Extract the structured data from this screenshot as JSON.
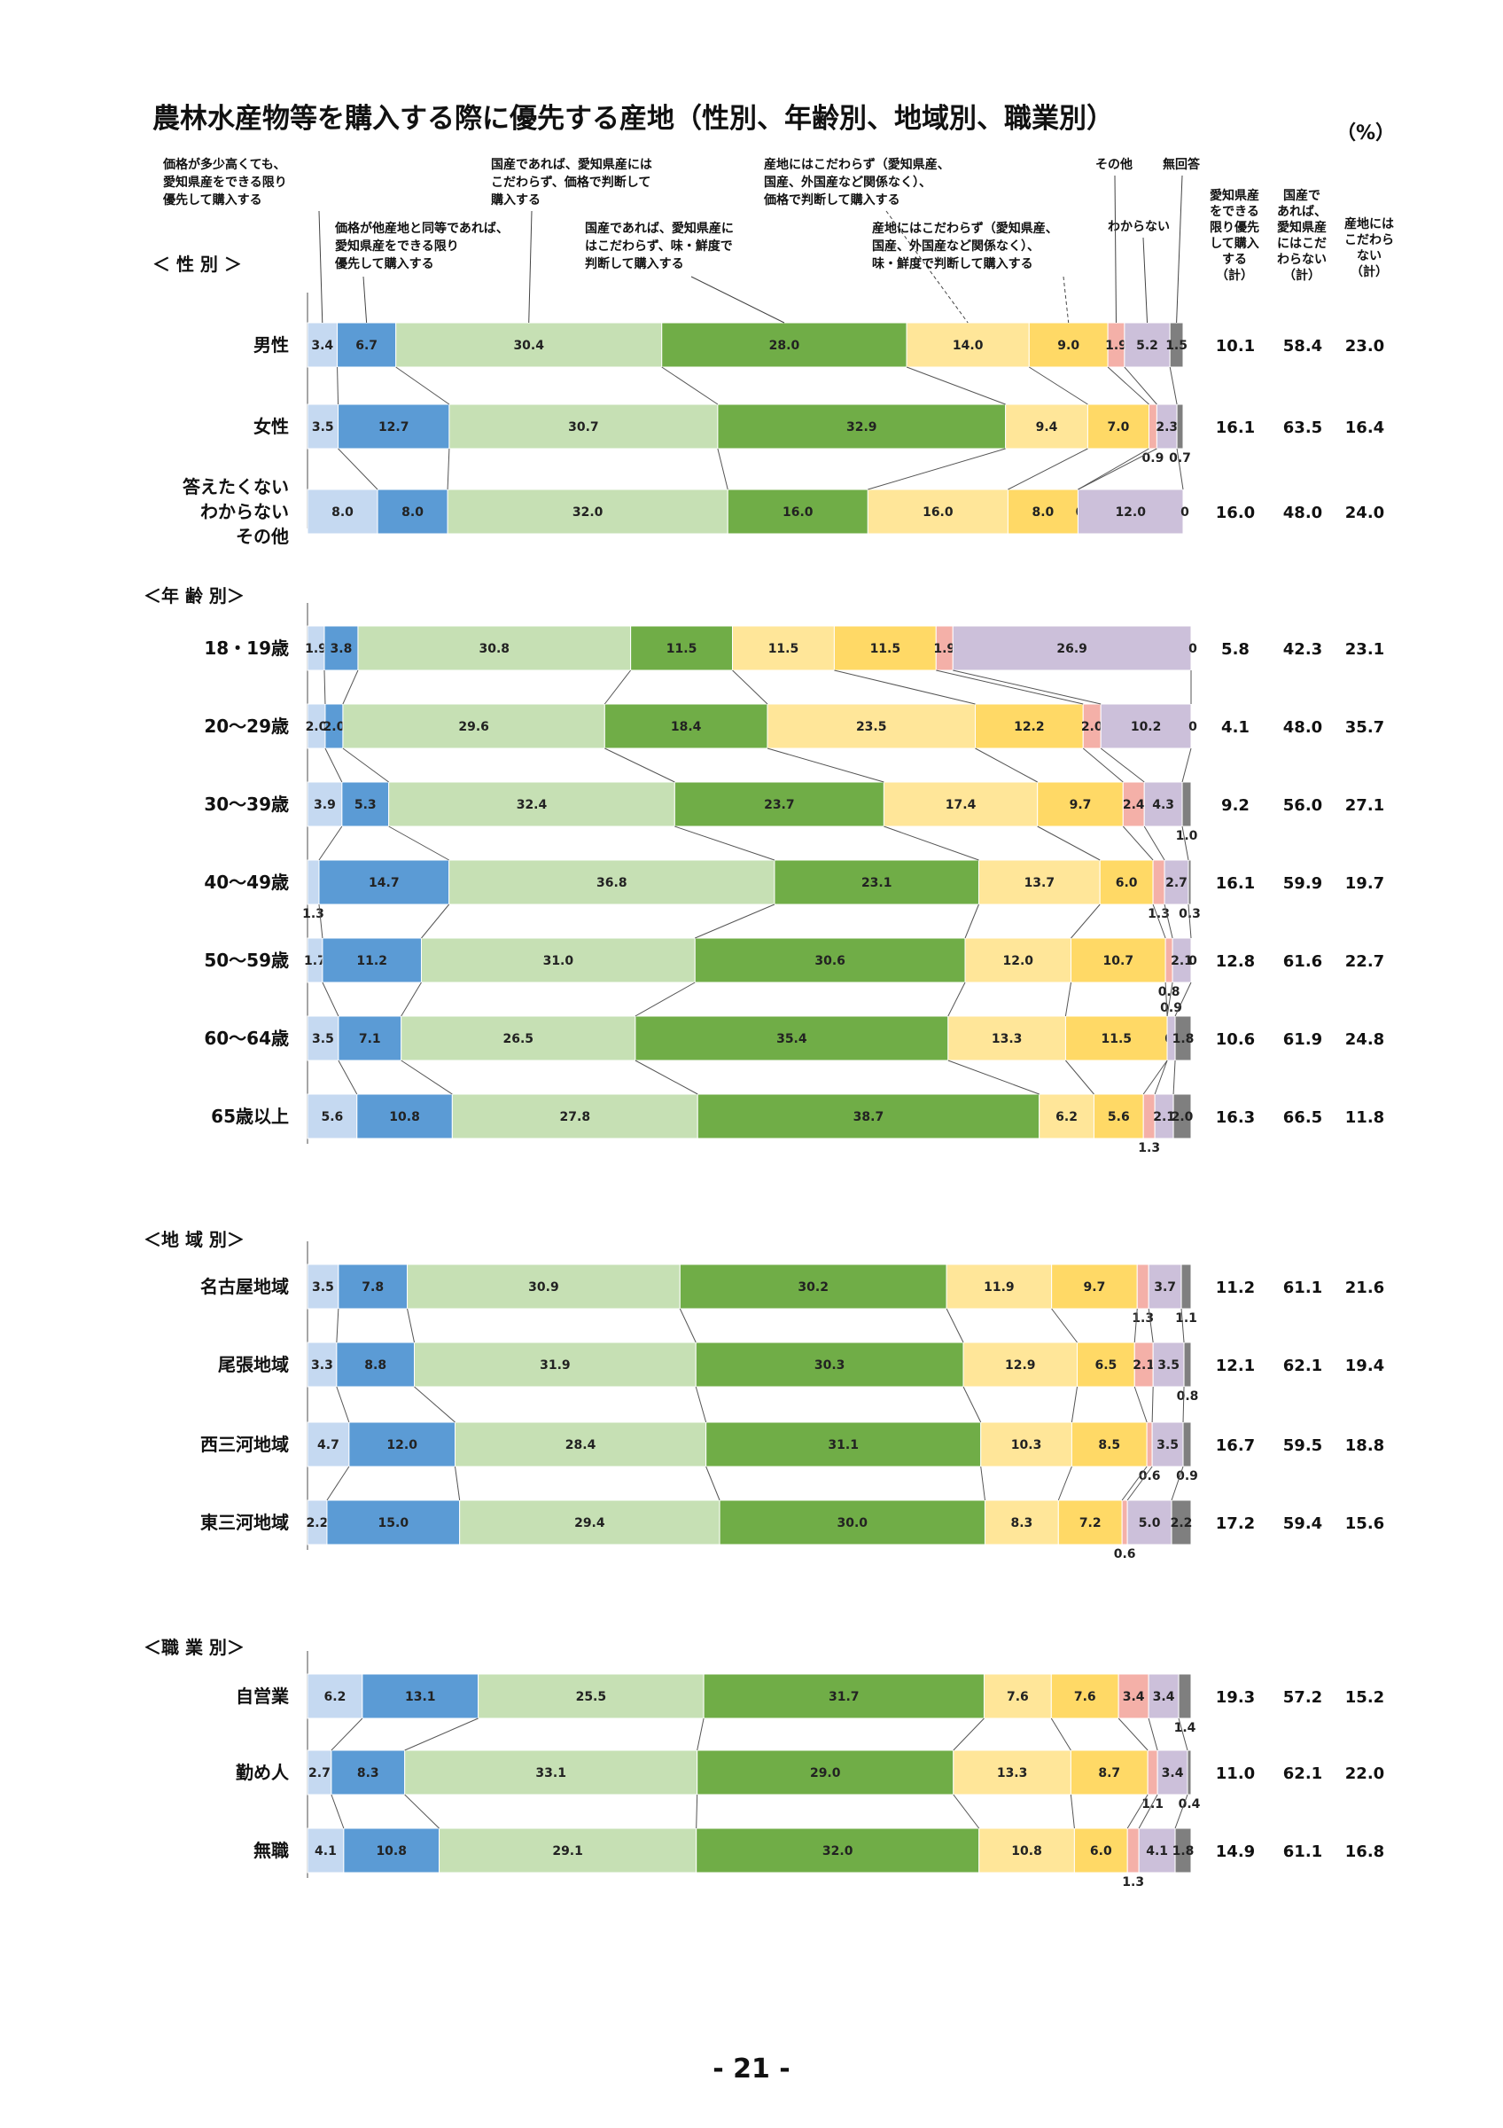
{
  "page": {
    "title": "農林水産物等を購入する際に優先する産地（性別、年齢別、地域別、職業別）",
    "unit": "（%）",
    "page_number": "- 21 -"
  },
  "legend": [
    {
      "lines": [
        "価格が多少高くても、",
        "愛知県産をできる限り",
        "優先して購入する"
      ]
    },
    {
      "lines": [
        "価格が他産地と同等であれば、",
        "愛知県産をできる限り",
        "優先して購入する"
      ]
    },
    {
      "lines": [
        "国産であれば、愛知県産には",
        "こだわらず、価格で判断して",
        "購入する"
      ]
    },
    {
      "lines": [
        "国産であれば、愛知県産に",
        "はこだわらず、味・鮮度で",
        "判断して購入する"
      ]
    },
    {
      "lines": [
        "産地にはこだわらず（愛知県産、",
        "国産、外国産など関係なく）、",
        "価格で判断して購入する"
      ]
    },
    {
      "lines": [
        "産地にはこだわらず（愛知県産、",
        "国産、外国産など関係なく）、",
        "味・鮮度で判断して購入する"
      ]
    },
    {
      "lines": [
        "その他"
      ]
    },
    {
      "lines": [
        "わからない"
      ]
    },
    {
      "lines": [
        "無回答"
      ]
    }
  ],
  "summary_headers": [
    {
      "lines": [
        "愛知県産",
        "をできる",
        "限り優先",
        "して購入",
        "する",
        "（計）"
      ]
    },
    {
      "lines": [
        "国産で",
        "あれば、",
        "愛知県産",
        "にはこだ",
        "わらない",
        "（計）"
      ]
    },
    {
      "lines": [
        "産地には",
        "こだわら",
        "ない",
        "（計）"
      ]
    }
  ],
  "colors": {
    "s1": "#c5d9f1",
    "s2": "#5b9bd5",
    "s3": "#c6e0b4",
    "s4": "#70ad47",
    "s5": "#ffe699",
    "s6": "#ffd966",
    "s7": "#f4b0a8",
    "s8": "#ccc0da",
    "s9": "#7f7f7f"
  },
  "chart_data": {
    "type": "bar",
    "orientation": "horizontal-stacked-100",
    "series": [
      {
        "name": "価格が多少高くても、愛知県産をできる限り優先して購入する"
      },
      {
        "name": "価格が他産地と同等であれば、愛知県産をできる限り優先して購入する"
      },
      {
        "name": "国産であれば、愛知県産にはこだわらず、価格で判断して購入する"
      },
      {
        "name": "国産であれば、愛知県産にはこだわらず、味・鮮度で判断して購入する"
      },
      {
        "name": "産地にはこだわらず（愛知県産、国産、外国産など関係なく）、価格で判断して購入する"
      },
      {
        "name": "産地にはこだわらず（愛知県産、国産、外国産など関係なく）、味・鮮度で判断して購入する"
      },
      {
        "name": "その他"
      },
      {
        "name": "わからない"
      },
      {
        "name": "無回答"
      }
    ],
    "groups": [
      {
        "label": "＜ 性 別 ＞",
        "rows": [
          {
            "lines": [
              "男性"
            ],
            "values": [
              3.4,
              6.7,
              30.4,
              28.0,
              14.0,
              9.0,
              1.9,
              5.2,
              1.5
            ],
            "totals": [
              "10.1",
              "58.4",
              "23.0"
            ]
          },
          {
            "lines": [
              "女性"
            ],
            "values": [
              3.5,
              12.7,
              30.7,
              32.9,
              9.4,
              7.0,
              0.9,
              2.3,
              0.7
            ],
            "totals": [
              "16.1",
              "63.5",
              "16.4"
            ]
          },
          {
            "lines": [
              "答えたくない",
              "わからない",
              "その他"
            ],
            "values": [
              8.0,
              8.0,
              32.0,
              16.0,
              16.0,
              8.0,
              0,
              12.0,
              0
            ],
            "totals": [
              "16.0",
              "48.0",
              "24.0"
            ]
          }
        ]
      },
      {
        "label": "＜年 齢 別＞",
        "rows": [
          {
            "lines": [
              "18・19歳"
            ],
            "values": [
              1.9,
              3.8,
              30.8,
              11.5,
              11.5,
              11.5,
              1.9,
              26.9,
              0
            ],
            "totals": [
              "5.8",
              "42.3",
              "23.1"
            ]
          },
          {
            "lines": [
              "20～29歳"
            ],
            "values": [
              2.0,
              2.0,
              29.6,
              18.4,
              23.5,
              12.2,
              2.0,
              10.2,
              0
            ],
            "totals": [
              "4.1",
              "48.0",
              "35.7"
            ]
          },
          {
            "lines": [
              "30～39歳"
            ],
            "values": [
              3.9,
              5.3,
              32.4,
              23.7,
              17.4,
              9.7,
              2.4,
              4.3,
              1.0
            ],
            "totals": [
              "9.2",
              "56.0",
              "27.1"
            ]
          },
          {
            "lines": [
              "40～49歳"
            ],
            "values": [
              1.3,
              14.7,
              36.8,
              23.1,
              13.7,
              6.0,
              1.3,
              2.7,
              0.3
            ],
            "totals": [
              "16.1",
              "59.9",
              "19.7"
            ]
          },
          {
            "lines": [
              "50～59歳"
            ],
            "values": [
              1.7,
              11.2,
              31.0,
              30.6,
              12.0,
              10.7,
              0.8,
              2.1,
              0
            ],
            "totals": [
              "12.8",
              "61.6",
              "22.7"
            ]
          },
          {
            "lines": [
              "60～64歳"
            ],
            "values": [
              3.5,
              7.1,
              26.5,
              35.4,
              13.3,
              11.5,
              0,
              0.9,
              1.8
            ],
            "totals": [
              "10.6",
              "61.9",
              "24.8"
            ]
          },
          {
            "lines": [
              "65歳以上"
            ],
            "values": [
              5.6,
              10.8,
              27.8,
              38.7,
              6.2,
              5.6,
              1.3,
              2.1,
              2.0
            ],
            "totals": [
              "16.3",
              "66.5",
              "11.8"
            ]
          }
        ]
      },
      {
        "label": "＜地 域 別＞",
        "rows": [
          {
            "lines": [
              "名古屋地域"
            ],
            "values": [
              3.5,
              7.8,
              30.9,
              30.2,
              11.9,
              9.7,
              1.3,
              3.7,
              1.1
            ],
            "totals": [
              "11.2",
              "61.1",
              "21.6"
            ]
          },
          {
            "lines": [
              "尾張地域"
            ],
            "values": [
              3.3,
              8.8,
              31.9,
              30.3,
              12.9,
              6.5,
              2.1,
              3.5,
              0.8
            ],
            "totals": [
              "12.1",
              "62.1",
              "19.4"
            ]
          },
          {
            "lines": [
              "西三河地域"
            ],
            "values": [
              4.7,
              12.0,
              28.4,
              31.1,
              10.3,
              8.5,
              0.6,
              3.5,
              0.9
            ],
            "totals": [
              "16.7",
              "59.5",
              "18.8"
            ]
          },
          {
            "lines": [
              "東三河地域"
            ],
            "values": [
              2.2,
              15.0,
              29.4,
              30.0,
              8.3,
              7.2,
              0.6,
              5.0,
              2.2
            ],
            "totals": [
              "17.2",
              "59.4",
              "15.6"
            ]
          }
        ]
      },
      {
        "label": "＜職 業 別＞",
        "rows": [
          {
            "lines": [
              "自営業"
            ],
            "values": [
              6.2,
              13.1,
              25.5,
              31.7,
              7.6,
              7.6,
              3.4,
              3.4,
              1.4
            ],
            "totals": [
              "19.3",
              "57.2",
              "15.2"
            ]
          },
          {
            "lines": [
              "勤め人"
            ],
            "values": [
              2.7,
              8.3,
              33.1,
              29.0,
              13.3,
              8.7,
              1.1,
              3.4,
              0.4
            ],
            "totals": [
              "11.0",
              "62.1",
              "22.0"
            ]
          },
          {
            "lines": [
              "無職"
            ],
            "values": [
              4.1,
              10.8,
              29.1,
              32.0,
              10.8,
              6.0,
              1.3,
              4.1,
              1.8
            ],
            "totals": [
              "14.9",
              "61.1",
              "16.8"
            ]
          }
        ]
      }
    ]
  }
}
